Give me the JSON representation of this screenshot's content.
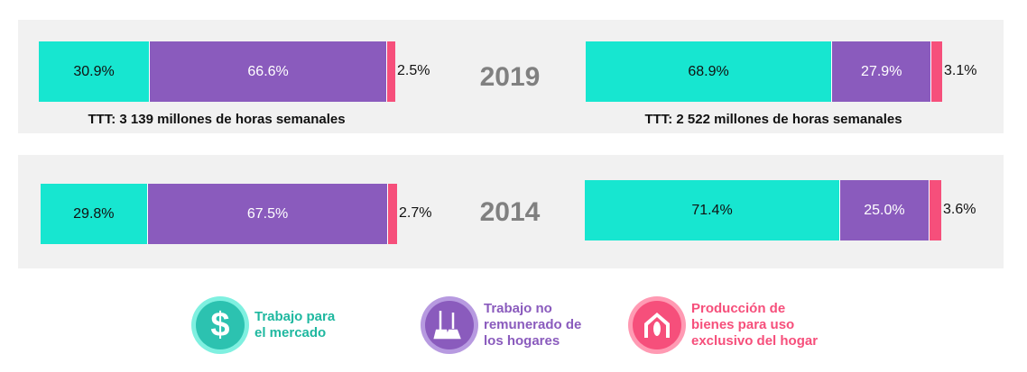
{
  "colors": {
    "market": "#17e6d0",
    "unpaid": "#8a5bbd",
    "own": "#f64f7b"
  },
  "chart_data": {
    "type": "bar",
    "stacked": true,
    "orientation": "horizontal",
    "series": [
      {
        "name": "Trabajo para el mercado",
        "color": "#17e6d0"
      },
      {
        "name": "Trabajo no remunerado de los hogares",
        "color": "#8a5bbd"
      },
      {
        "name": "Producción de bienes para uso exclusivo del hogar",
        "color": "#f64f7b"
      }
    ],
    "panels": [
      {
        "year": "2019",
        "left": {
          "values": [
            30.9,
            66.6,
            2.5
          ],
          "labels": [
            "30.9%",
            "66.6%",
            "2.5%"
          ]
        },
        "right": {
          "values": [
            68.9,
            27.9,
            3.1
          ],
          "labels": [
            "68.9%",
            "27.9%",
            "3.1%"
          ]
        },
        "ttt_left": "TTT: 3 139 millones de horas semanales",
        "ttt_right": "TTT: 2 522 millones de horas semanales"
      },
      {
        "year": "2014",
        "left": {
          "values": [
            29.8,
            67.5,
            2.7
          ],
          "labels": [
            "29.8%",
            "67.5%",
            "2.7%"
          ]
        },
        "right": {
          "values": [
            71.4,
            25.0,
            3.6
          ],
          "labels": [
            "71.4%",
            "25.0%",
            "3.6%"
          ]
        }
      }
    ],
    "legend_placement": "bottom"
  },
  "legend": [
    {
      "icon": "dollar-icon",
      "lines": [
        "Trabajo para",
        "el mercado"
      ],
      "color": "#1fb8a0"
    },
    {
      "icon": "broom-bucket-icon",
      "lines": [
        "Trabajo no",
        "remunerado de",
        "los hogares"
      ],
      "color": "#8a5bbd"
    },
    {
      "icon": "house-corn-icon",
      "lines": [
        "Producción de",
        "bienes para uso",
        "exclusivo del hogar"
      ],
      "color": "#f64f7b"
    }
  ]
}
